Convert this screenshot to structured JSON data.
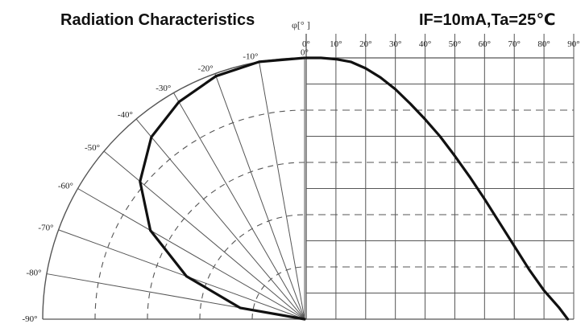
{
  "chart_data": [
    {
      "type": "line",
      "panel": "polar",
      "title": "Radiation Characteristics",
      "angle_unit_label": "φ[° ]",
      "angle_ticks": [
        "-90°",
        "-80°",
        "-70°",
        "-60°",
        "-50°",
        "-40°",
        "-30°",
        "-20°",
        "-10°",
        "0°"
      ],
      "angle_range_deg": [
        -90,
        0
      ],
      "radial_range": [
        0,
        1
      ],
      "series": [
        {
          "angle_deg": [
            -90,
            -80,
            -70,
            -60,
            -50,
            -40,
            -30,
            -20,
            -10,
            0
          ],
          "relative_intensity": [
            0.0,
            0.25,
            0.48,
            0.68,
            0.82,
            0.91,
            0.96,
            0.99,
            1.0,
            1.0
          ]
        }
      ],
      "grid": true
    },
    {
      "type": "line",
      "panel": "cartesian",
      "title": "IF=10mA,Ta=25℃",
      "x_ticks": [
        "0°",
        "10°",
        "20°",
        "30°",
        "40°",
        "50°",
        "60°",
        "70°",
        "80°",
        "90°"
      ],
      "xlim": [
        0,
        90
      ],
      "ylim": [
        0,
        1
      ],
      "series": [
        {
          "x": [
            0,
            5,
            10,
            15,
            20,
            25,
            30,
            35,
            40,
            45,
            50,
            55,
            60,
            65,
            70,
            75,
            80,
            85,
            88
          ],
          "y": [
            1.0,
            1.0,
            0.995,
            0.985,
            0.96,
            0.925,
            0.88,
            0.825,
            0.765,
            0.7,
            0.625,
            0.545,
            0.46,
            0.37,
            0.28,
            0.19,
            0.11,
            0.045,
            0.0
          ]
        }
      ],
      "grid": true
    }
  ],
  "colors": {
    "curve": "#111111",
    "grid": "#555555",
    "background": "#ffffff"
  }
}
